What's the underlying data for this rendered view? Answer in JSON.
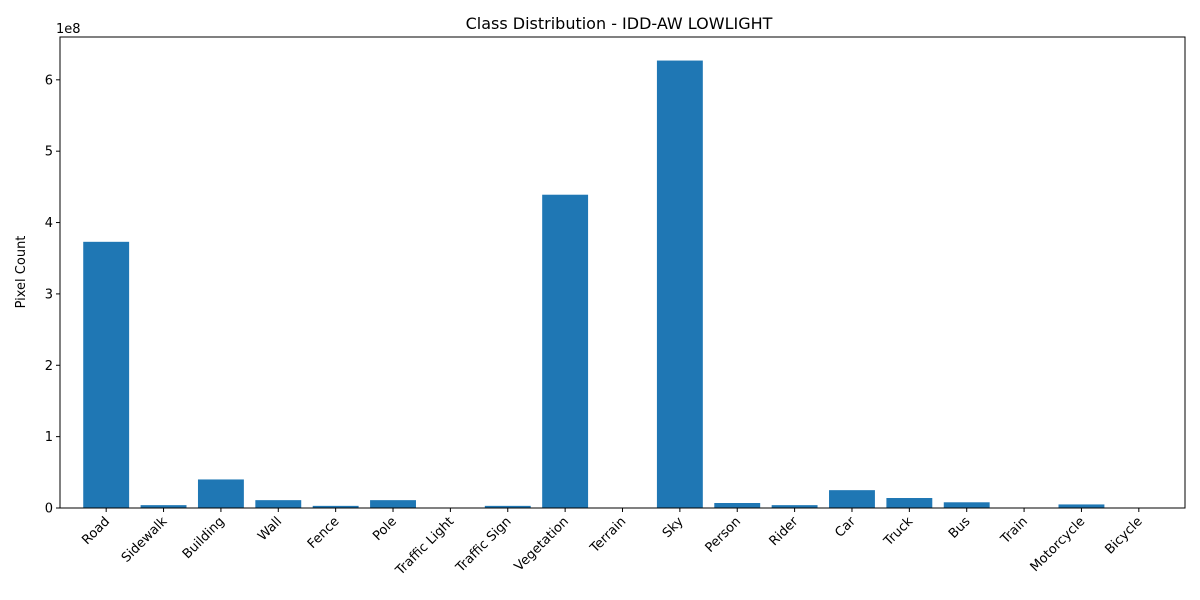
{
  "chart_data": {
    "type": "bar",
    "title": "Class Distribution - IDD-AW LOWLIGHT",
    "xlabel": "",
    "ylabel": "Pixel Count",
    "y_offset_label": "1e8",
    "y_scale": 100000000,
    "ylim": [
      0,
      660000000
    ],
    "yticks": [
      0,
      100000000,
      200000000,
      300000000,
      400000000,
      500000000,
      600000000
    ],
    "ytick_labels": [
      "0",
      "1",
      "2",
      "3",
      "4",
      "5",
      "6"
    ],
    "categories": [
      "Road",
      "Sidewalk",
      "Building",
      "Wall",
      "Fence",
      "Pole",
      "Traffic Light",
      "Traffic Sign",
      "Vegetation",
      "Terrain",
      "Sky",
      "Person",
      "Rider",
      "Car",
      "Truck",
      "Bus",
      "Train",
      "Motorcycle",
      "Bicycle"
    ],
    "values": [
      373000000,
      4000000,
      40000000,
      11000000,
      3000000,
      11000000,
      300000,
      3000000,
      439000000,
      200000,
      627000000,
      7000000,
      4000000,
      25000000,
      14000000,
      8000000,
      100000,
      5000000,
      200000
    ],
    "color": "#1f77b4",
    "grid": false
  }
}
